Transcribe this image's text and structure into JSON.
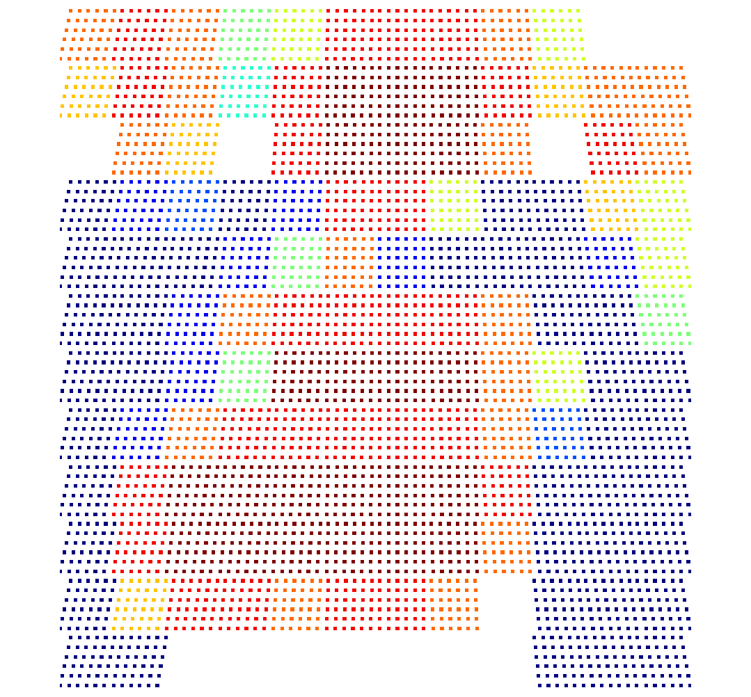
{
  "chart_data": {
    "type": "scatter",
    "color": "jet",
    "tick_labels": false,
    "grid": false,
    "value_range": [
      0,
      1
    ],
    "cells": [
      [
        0.8,
        0.9,
        0.8,
        0.5,
        0.6,
        0.9,
        0.9,
        0.9,
        0.8,
        0.6,
        null,
        null
      ],
      [
        0.7,
        0.9,
        0.8,
        0.4,
        0.9,
        1,
        1,
        1,
        0.9,
        0.7,
        0.8,
        0.8
      ],
      [
        null,
        0.8,
        0.7,
        null,
        0.9,
        1,
        1,
        1,
        0.8,
        null,
        0.9,
        0.8
      ],
      [
        0,
        0.1,
        0.2,
        0,
        0.1,
        0.9,
        0.9,
        0.6,
        0,
        0,
        0.7,
        0.6
      ],
      [
        0,
        0,
        0,
        0.1,
        0.5,
        0.8,
        0.1,
        0,
        0,
        0,
        0.1,
        0.6
      ],
      [
        0,
        0,
        0.1,
        0.8,
        0.9,
        0.9,
        0.9,
        0.9,
        0.8,
        0,
        0,
        0.5
      ],
      [
        0,
        0,
        0.1,
        0.5,
        1,
        1,
        1,
        1,
        0.8,
        0.6,
        0,
        0
      ],
      [
        0,
        0.1,
        0.8,
        0.9,
        0.9,
        0.9,
        0.9,
        0.9,
        0.8,
        0.2,
        0,
        0
      ],
      [
        0,
        0.9,
        1,
        1,
        1,
        1,
        1,
        1,
        0.9,
        0,
        0,
        0
      ],
      [
        0,
        0.9,
        1,
        1,
        1,
        1,
        1,
        1,
        0.8,
        0,
        0,
        0
      ],
      [
        0,
        0.7,
        0.9,
        0.9,
        0.8,
        0.9,
        0.9,
        0.8,
        null,
        0,
        0,
        0
      ],
      [
        0,
        0,
        null,
        null,
        null,
        null,
        null,
        null,
        null,
        0,
        0,
        0
      ]
    ]
  }
}
